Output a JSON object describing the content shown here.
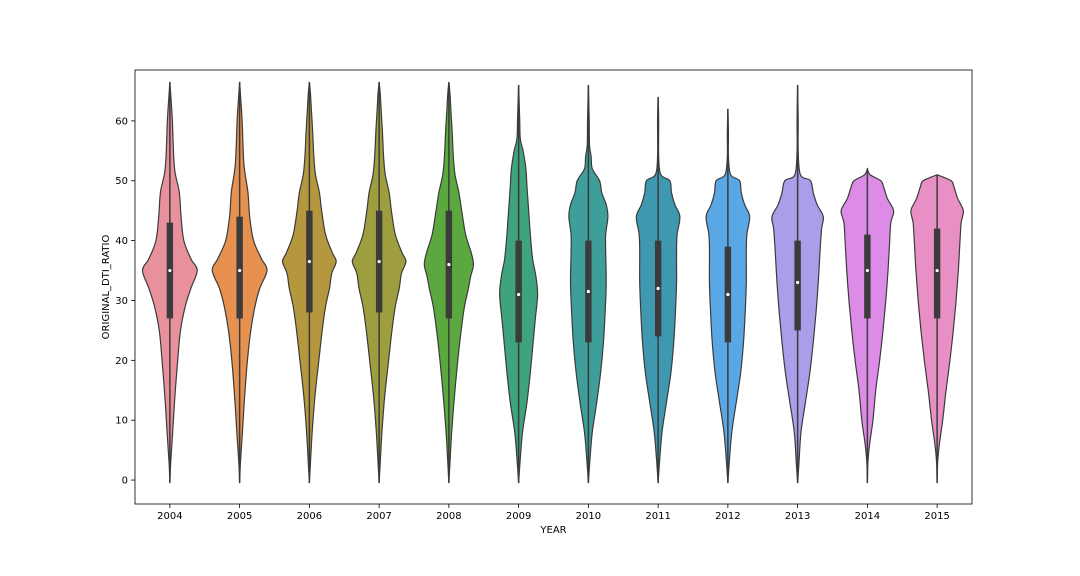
{
  "chart_data": {
    "type": "violin",
    "title": "",
    "xlabel": "YEAR",
    "ylabel": "ORIGINAL_DTI_RATIO",
    "ylim": [
      -4,
      68.5
    ],
    "yticks": [
      0,
      10,
      20,
      30,
      40,
      50,
      60
    ],
    "grid": false,
    "categories": [
      "2004",
      "2005",
      "2006",
      "2007",
      "2008",
      "2009",
      "2010",
      "2011",
      "2012",
      "2013",
      "2014",
      "2015"
    ],
    "series": [
      {
        "category": "2004",
        "color": "#e8919c",
        "min": -0.5,
        "max": 66.5,
        "q1": 27,
        "median": 35,
        "q3": 43,
        "profile": [
          [
            -0.5,
            0
          ],
          [
            3,
            0.03
          ],
          [
            8,
            0.1
          ],
          [
            14,
            0.18
          ],
          [
            20,
            0.28
          ],
          [
            25,
            0.38
          ],
          [
            29,
            0.55
          ],
          [
            32,
            0.75
          ],
          [
            35,
            0.98
          ],
          [
            37,
            0.75
          ],
          [
            40,
            0.5
          ],
          [
            44,
            0.4
          ],
          [
            48,
            0.34
          ],
          [
            51,
            0.2
          ],
          [
            53,
            0.15
          ],
          [
            56,
            0.12
          ],
          [
            60,
            0.09
          ],
          [
            63,
            0.05
          ],
          [
            66.5,
            0
          ]
        ]
      },
      {
        "category": "2005",
        "color": "#e69150",
        "min": -0.5,
        "max": 66.5,
        "q1": 27,
        "median": 35,
        "q3": 44,
        "profile": [
          [
            -0.5,
            0
          ],
          [
            3,
            0.03
          ],
          [
            8,
            0.1
          ],
          [
            14,
            0.18
          ],
          [
            20,
            0.28
          ],
          [
            25,
            0.4
          ],
          [
            29,
            0.55
          ],
          [
            32,
            0.72
          ],
          [
            35,
            0.98
          ],
          [
            37,
            0.78
          ],
          [
            40,
            0.5
          ],
          [
            44,
            0.36
          ],
          [
            48,
            0.3
          ],
          [
            51,
            0.2
          ],
          [
            53,
            0.15
          ],
          [
            56,
            0.12
          ],
          [
            60,
            0.09
          ],
          [
            63,
            0.05
          ],
          [
            66.5,
            0
          ]
        ]
      },
      {
        "category": "2006",
        "color": "#b5983e",
        "min": -0.5,
        "max": 66.5,
        "q1": 28,
        "median": 36.5,
        "q3": 45,
        "profile": [
          [
            -0.5,
            0
          ],
          [
            3,
            0.04
          ],
          [
            8,
            0.1
          ],
          [
            14,
            0.2
          ],
          [
            20,
            0.34
          ],
          [
            25,
            0.46
          ],
          [
            29,
            0.58
          ],
          [
            32,
            0.72
          ],
          [
            34.5,
            0.8
          ],
          [
            36.5,
            0.96
          ],
          [
            38,
            0.82
          ],
          [
            41,
            0.58
          ],
          [
            45,
            0.44
          ],
          [
            48,
            0.36
          ],
          [
            51,
            0.22
          ],
          [
            54,
            0.16
          ],
          [
            58,
            0.12
          ],
          [
            62,
            0.07
          ],
          [
            64.5,
            0.04
          ],
          [
            66.5,
            0
          ]
        ]
      },
      {
        "category": "2007",
        "color": "#9e9e3e",
        "min": -0.5,
        "max": 66.5,
        "q1": 28,
        "median": 36.5,
        "q3": 45,
        "profile": [
          [
            -0.5,
            0
          ],
          [
            3,
            0.04
          ],
          [
            8,
            0.1
          ],
          [
            14,
            0.2
          ],
          [
            20,
            0.34
          ],
          [
            25,
            0.46
          ],
          [
            29,
            0.58
          ],
          [
            32,
            0.72
          ],
          [
            34.5,
            0.8
          ],
          [
            36.5,
            0.96
          ],
          [
            38,
            0.82
          ],
          [
            41,
            0.58
          ],
          [
            45,
            0.44
          ],
          [
            48,
            0.36
          ],
          [
            51,
            0.22
          ],
          [
            54,
            0.16
          ],
          [
            58,
            0.12
          ],
          [
            62,
            0.07
          ],
          [
            64.5,
            0.04
          ],
          [
            66.5,
            0
          ]
        ]
      },
      {
        "category": "2008",
        "color": "#5ba83e",
        "min": -0.5,
        "max": 66.5,
        "q1": 27,
        "median": 36,
        "q3": 45,
        "profile": [
          [
            -0.5,
            0
          ],
          [
            3,
            0.04
          ],
          [
            8,
            0.1
          ],
          [
            14,
            0.2
          ],
          [
            20,
            0.32
          ],
          [
            25,
            0.44
          ],
          [
            29,
            0.56
          ],
          [
            32,
            0.7
          ],
          [
            34,
            0.78
          ],
          [
            36,
            0.88
          ],
          [
            38,
            0.8
          ],
          [
            41,
            0.6
          ],
          [
            45,
            0.46
          ],
          [
            48,
            0.36
          ],
          [
            51,
            0.22
          ],
          [
            54,
            0.16
          ],
          [
            58,
            0.12
          ],
          [
            62,
            0.07
          ],
          [
            64.5,
            0.04
          ],
          [
            66.5,
            0
          ]
        ]
      },
      {
        "category": "2009",
        "color": "#3fa37e",
        "min": -0.5,
        "max": 66,
        "q1": 23,
        "median": 31,
        "q3": 40,
        "profile": [
          [
            -0.5,
            0
          ],
          [
            3,
            0.05
          ],
          [
            8,
            0.14
          ],
          [
            13,
            0.3
          ],
          [
            18,
            0.42
          ],
          [
            23,
            0.52
          ],
          [
            27,
            0.6
          ],
          [
            31,
            0.68
          ],
          [
            34,
            0.62
          ],
          [
            37,
            0.5
          ],
          [
            41,
            0.42
          ],
          [
            45,
            0.36
          ],
          [
            49,
            0.3
          ],
          [
            52,
            0.26
          ],
          [
            55,
            0.16
          ],
          [
            57,
            0.06
          ],
          [
            60,
            0.04
          ],
          [
            63,
            0.02
          ],
          [
            66,
            0
          ]
        ]
      },
      {
        "category": "2010",
        "color": "#3e9e9a",
        "min": -0.5,
        "max": 66,
        "q1": 23,
        "median": 31.5,
        "q3": 40,
        "profile": [
          [
            -0.5,
            0
          ],
          [
            3,
            0.05
          ],
          [
            8,
            0.14
          ],
          [
            13,
            0.3
          ],
          [
            18,
            0.44
          ],
          [
            23,
            0.54
          ],
          [
            28,
            0.6
          ],
          [
            33,
            0.64
          ],
          [
            38,
            0.62
          ],
          [
            41,
            0.62
          ],
          [
            44,
            0.7
          ],
          [
            46,
            0.64
          ],
          [
            48,
            0.48
          ],
          [
            50,
            0.4
          ],
          [
            52,
            0.14
          ],
          [
            54,
            0.1
          ],
          [
            56,
            0.04
          ],
          [
            60,
            0.03
          ],
          [
            66,
            0
          ]
        ]
      },
      {
        "category": "2011",
        "color": "#3e98b0",
        "min": -0.5,
        "max": 64,
        "q1": 24,
        "median": 32,
        "q3": 40,
        "profile": [
          [
            -0.5,
            0
          ],
          [
            3,
            0.05
          ],
          [
            8,
            0.14
          ],
          [
            13,
            0.3
          ],
          [
            18,
            0.46
          ],
          [
            23,
            0.56
          ],
          [
            28,
            0.62
          ],
          [
            33,
            0.66
          ],
          [
            38,
            0.66
          ],
          [
            41,
            0.68
          ],
          [
            44,
            0.78
          ],
          [
            46,
            0.6
          ],
          [
            48,
            0.48
          ],
          [
            50,
            0.42
          ],
          [
            51,
            0.1
          ],
          [
            54,
            0.02
          ],
          [
            60,
            0.02
          ],
          [
            64,
            0
          ]
        ]
      },
      {
        "category": "2012",
        "color": "#5aa7e6",
        "min": -0.5,
        "max": 62,
        "q1": 23,
        "median": 31,
        "q3": 39,
        "profile": [
          [
            -0.5,
            0
          ],
          [
            3,
            0.05
          ],
          [
            8,
            0.14
          ],
          [
            13,
            0.3
          ],
          [
            18,
            0.46
          ],
          [
            23,
            0.56
          ],
          [
            28,
            0.62
          ],
          [
            33,
            0.66
          ],
          [
            38,
            0.66
          ],
          [
            41,
            0.68
          ],
          [
            44,
            0.78
          ],
          [
            46,
            0.6
          ],
          [
            48,
            0.48
          ],
          [
            50,
            0.42
          ],
          [
            51,
            0.1
          ],
          [
            54,
            0.02
          ],
          [
            58,
            0.02
          ],
          [
            62,
            0
          ]
        ]
      },
      {
        "category": "2013",
        "color": "#a99ee9",
        "min": -0.5,
        "max": 66,
        "q1": 25,
        "median": 33,
        "q3": 40,
        "profile": [
          [
            -0.5,
            0
          ],
          [
            3,
            0.05
          ],
          [
            8,
            0.12
          ],
          [
            13,
            0.28
          ],
          [
            18,
            0.44
          ],
          [
            23,
            0.56
          ],
          [
            28,
            0.66
          ],
          [
            33,
            0.74
          ],
          [
            38,
            0.8
          ],
          [
            42,
            0.86
          ],
          [
            44,
            0.92
          ],
          [
            46,
            0.7
          ],
          [
            48,
            0.56
          ],
          [
            50,
            0.46
          ],
          [
            51,
            0.1
          ],
          [
            55,
            0.02
          ],
          [
            60,
            0.02
          ],
          [
            66,
            0
          ]
        ]
      },
      {
        "category": "2014",
        "color": "#dc8ce6",
        "min": -0.5,
        "max": 52,
        "q1": 27,
        "median": 35,
        "q3": 41,
        "profile": [
          [
            -0.5,
            0
          ],
          [
            3,
            0.02
          ],
          [
            6,
            0.08
          ],
          [
            10,
            0.2
          ],
          [
            15,
            0.3
          ],
          [
            20,
            0.44
          ],
          [
            25,
            0.56
          ],
          [
            30,
            0.66
          ],
          [
            35,
            0.74
          ],
          [
            40,
            0.8
          ],
          [
            43,
            0.84
          ],
          [
            45,
            0.94
          ],
          [
            47,
            0.72
          ],
          [
            49,
            0.58
          ],
          [
            50,
            0.48
          ],
          [
            51,
            0.1
          ],
          [
            52,
            0
          ]
        ]
      },
      {
        "category": "2015",
        "color": "#e88fc6",
        "min": -0.5,
        "max": 51,
        "q1": 27,
        "median": 35,
        "q3": 42,
        "profile": [
          [
            -0.5,
            0
          ],
          [
            3,
            0.02
          ],
          [
            6,
            0.08
          ],
          [
            10,
            0.2
          ],
          [
            15,
            0.32
          ],
          [
            20,
            0.46
          ],
          [
            25,
            0.58
          ],
          [
            30,
            0.68
          ],
          [
            35,
            0.76
          ],
          [
            40,
            0.82
          ],
          [
            43,
            0.86
          ],
          [
            45,
            0.94
          ],
          [
            47,
            0.74
          ],
          [
            49,
            0.6
          ],
          [
            50,
            0.5
          ],
          [
            51,
            0
          ]
        ]
      }
    ]
  }
}
